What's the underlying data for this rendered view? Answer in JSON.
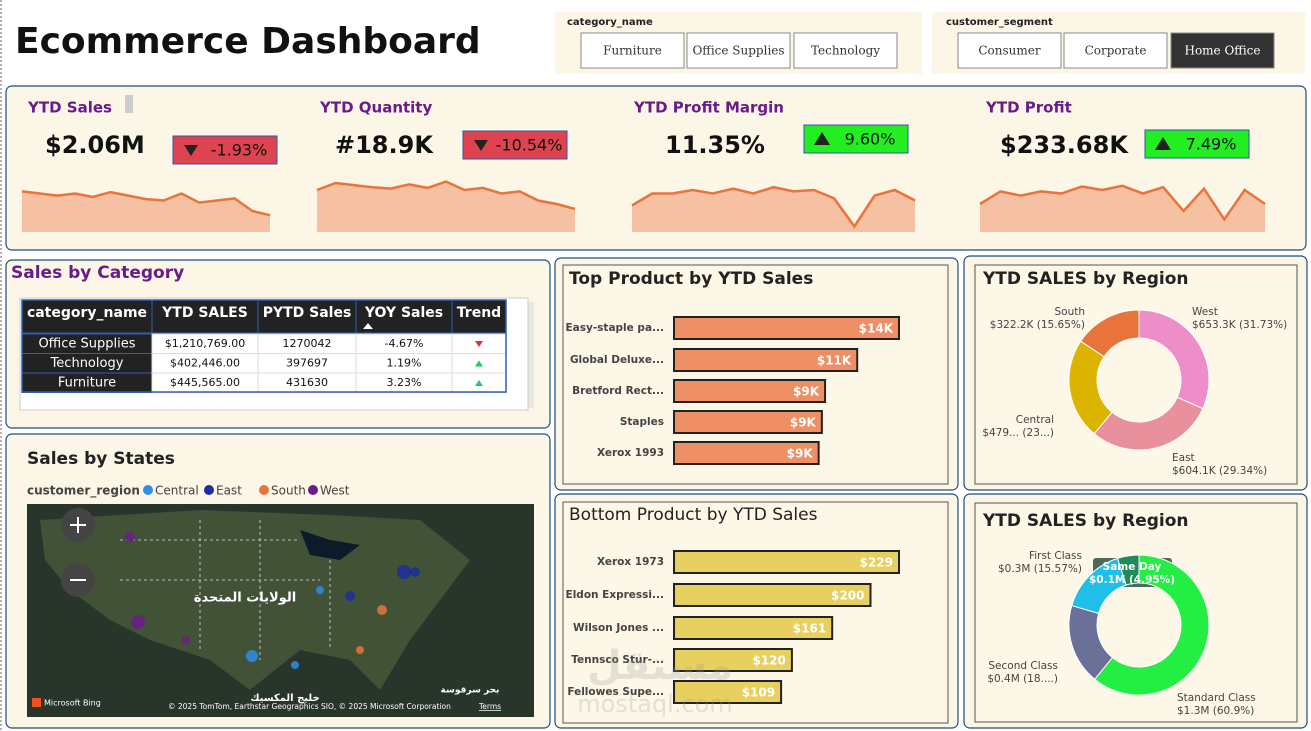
{
  "title": "Ecommerce Dashboard",
  "filters": [
    {
      "label": "category_name",
      "options": [
        "Furniture",
        "Office Supplies",
        "Technology"
      ]
    },
    {
      "label": "customer_segment",
      "options": [
        "Consumer",
        "Corporate",
        "Home Office"
      ],
      "selected": 2
    }
  ],
  "kpis": [
    {
      "label": "YTD Sales",
      "value": "$2.06M",
      "change": {
        "value": -1.93,
        "label": "-1.93%"
      },
      "trend": [
        58,
        55,
        52,
        55,
        50,
        57,
        52,
        47,
        45,
        55,
        42,
        45,
        48,
        30,
        24
      ]
    },
    {
      "label": "YTD Quantity",
      "value": "#18.9K",
      "change": {
        "value": -10.54,
        "label": "-10.54%"
      },
      "trend": [
        60,
        70,
        67,
        64,
        62,
        68,
        63,
        72,
        60,
        63,
        55,
        58,
        45,
        40,
        33
      ]
    },
    {
      "label": "YTD Profit Margin",
      "value": "11.35%",
      "change": {
        "value": 9.6,
        "label": "9.60%"
      },
      "trend": [
        38,
        55,
        55,
        60,
        55,
        62,
        55,
        64,
        58,
        60,
        48,
        8,
        52,
        60,
        45
      ]
    },
    {
      "label": "YTD Profit",
      "value": "$233.68K",
      "change": {
        "value": 7.49,
        "label": "7.49%"
      },
      "trend": [
        40,
        58,
        52,
        58,
        55,
        65,
        60,
        66,
        55,
        64,
        30,
        62,
        18,
        60,
        40
      ]
    }
  ],
  "sales_by_category": {
    "title": "Sales by Category",
    "columns": [
      "category_name",
      "YTD SALES",
      "PYTD Sales",
      "YOY Sales",
      "Trend"
    ],
    "rows": [
      [
        "Office Supplies",
        "$1,210,769.00",
        "1270042",
        {
          "value": -4.67,
          "label": "-4.67%"
        }
      ],
      [
        "Technology",
        "$402,446.00",
        "397697",
        {
          "value": 1.19,
          "label": "1.19%"
        }
      ],
      [
        "Furniture",
        "$445,565.00",
        "431630",
        {
          "value": 3.23,
          "label": "3.23%"
        }
      ]
    ]
  },
  "sales_by_states": {
    "title": "Sales by States",
    "legend_title": "customer_region",
    "legend": [
      {
        "name": "Central",
        "color": "#2e8ee8"
      },
      {
        "name": "East",
        "color": "#1a2ea0"
      },
      {
        "name": "South",
        "color": "#e8743b"
      },
      {
        "name": "West",
        "color": "#6a1b8a"
      }
    ],
    "map_labels": [
      "الولايات المتحدة",
      "خليج المكسيك",
      "بحر سرقوسة"
    ],
    "provider": "Microsoft Bing",
    "attribution": "© 2025 TomTom, Earthstar Geographics SIO, © 2025 Microsoft Corporation",
    "terms": "Terms"
  },
  "top_products": {
    "type": "bar",
    "title": "Top Product by YTD Sales",
    "categories": [
      "Easy-staple pa...",
      "Global Deluxe...",
      "Bretford Rect...",
      "Staples",
      "Xerox 1993"
    ],
    "values": [
      14000,
      11400,
      9400,
      9200,
      9000
    ],
    "value_labels": [
      "$14K",
      "$11K",
      "$9K",
      "$9K",
      "$9K"
    ],
    "color": "#ee8f66"
  },
  "bottom_products": {
    "type": "bar",
    "title": "Bottom Product by YTD Sales",
    "categories": [
      "Xerox 1973",
      "Eldon Expressi...",
      "Wilson Jones ...",
      "Tennsco Stur-...",
      "Fellowes Supe..."
    ],
    "values": [
      229,
      200,
      161,
      120,
      109
    ],
    "value_labels": [
      "$229",
      "$200",
      "$161",
      "$120",
      "$109"
    ],
    "color": "#e8d060"
  },
  "region_sales": {
    "type": "donut",
    "title": "YTD SALES by Region",
    "categories": [
      "West",
      "East",
      "Central",
      "South"
    ],
    "values": [
      653300,
      604100,
      479300,
      322200
    ],
    "value_labels": [
      "$653.3K (31.73%)",
      "$604.1K (29.34%)",
      "$479... (23...)",
      "$322.2K (15.65%)"
    ],
    "colors": [
      "#ee8ec8",
      "#e8909c",
      "#dcb400",
      "#e8743b"
    ]
  },
  "ship_mode_sales": {
    "type": "donut",
    "title": "YTD SALES by Region",
    "categories": [
      "Standard Class",
      "Second Class",
      "First Class",
      "Same Day"
    ],
    "values": [
      1254500,
      382700,
      320700,
      102000
    ],
    "value_labels": [
      "$1.3M (60.9%)",
      "$0.4M (18....)",
      "$0.3M (15.57%)",
      "$0.1M (4.95%)"
    ],
    "colors": [
      "#22ee44",
      "#6b7099",
      "#1ec0e8",
      "#1f8a5a"
    ]
  },
  "watermark": [
    "مستقل",
    "mostaql.com"
  ]
}
